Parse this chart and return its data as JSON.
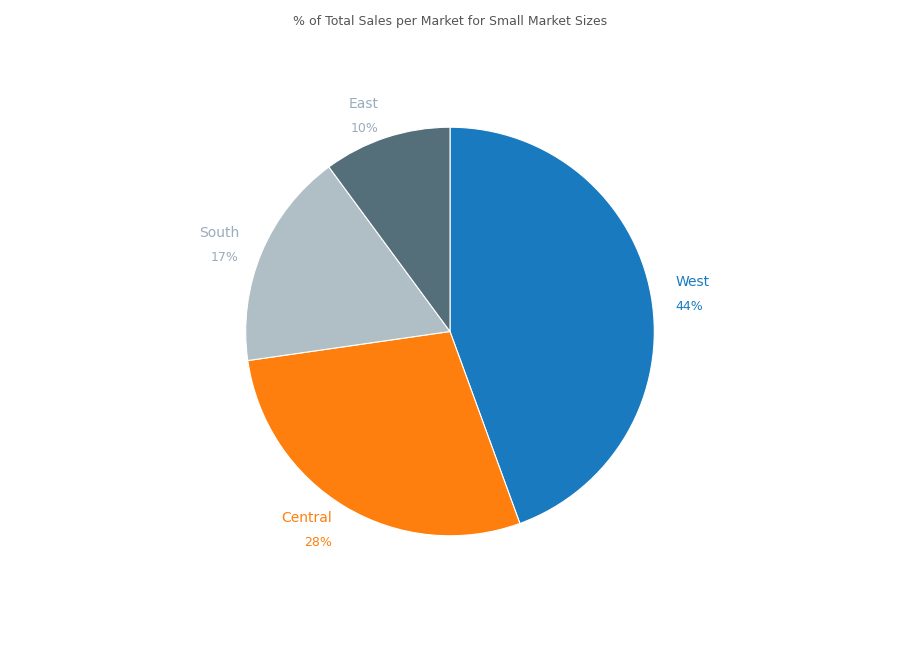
{
  "title": "% of Total Sales per Market for Small Market Sizes",
  "title_fontsize": 9,
  "title_color": "#555555",
  "slices": [
    "West",
    "Central",
    "South",
    "East"
  ],
  "values": [
    44,
    28,
    17,
    10
  ],
  "colors": [
    "#1a7abf",
    "#ff7f0e",
    "#b0bec5",
    "#546e7a"
  ],
  "label_colors": [
    "#1a7abf",
    "#ff7f0e",
    "#9aacbb",
    "#9aacbb"
  ],
  "startangle": 90,
  "background_color": "#ffffff",
  "label_fontsize": 10,
  "pct_fontsize": 9
}
